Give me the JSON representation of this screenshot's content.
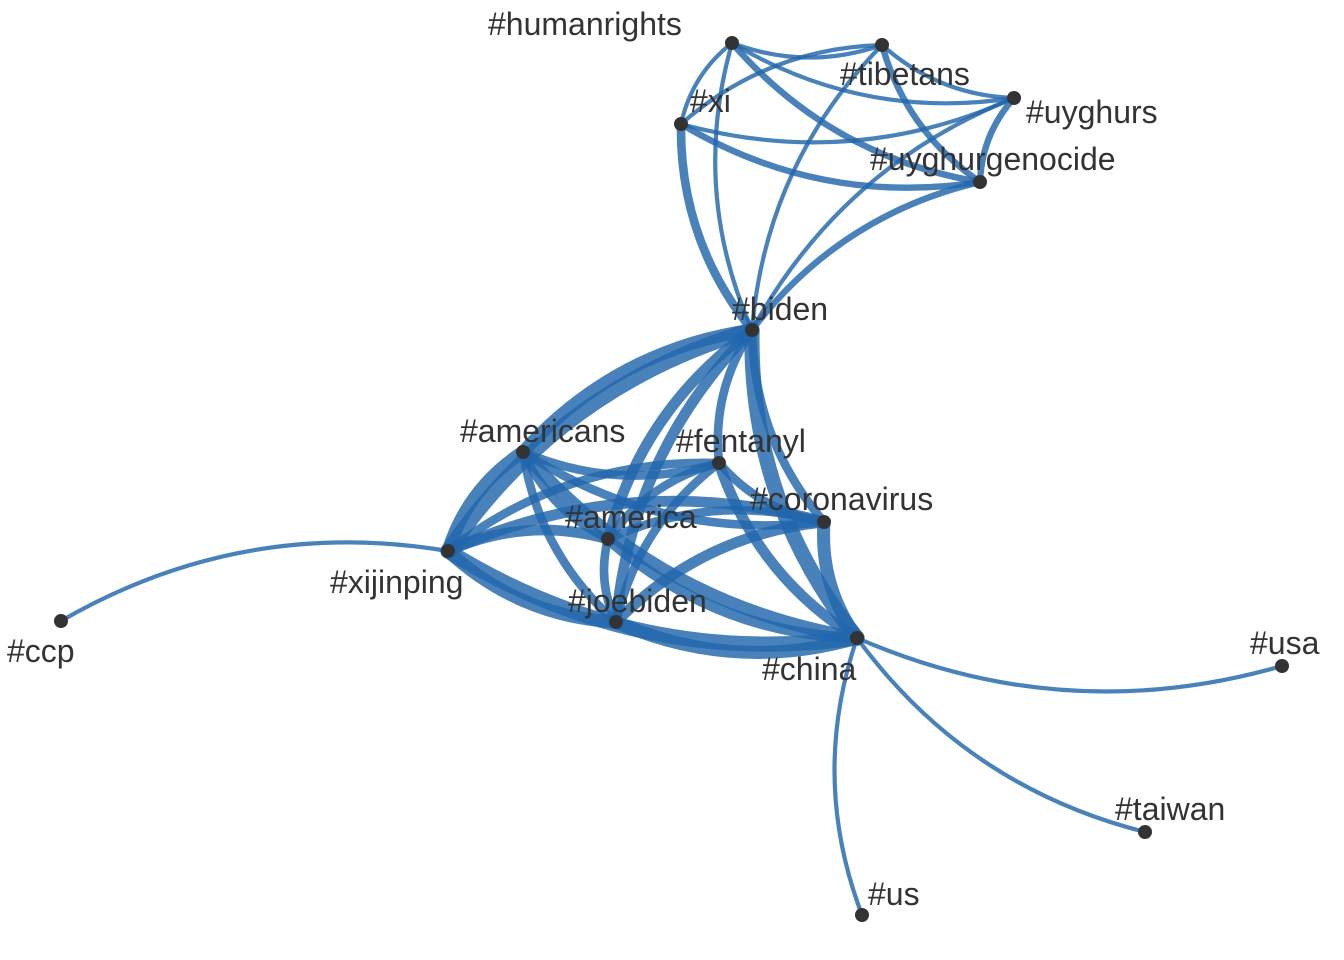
{
  "colors": {
    "edge": "#2166ac",
    "node": "#333333",
    "label": "#333333",
    "background": "#ffffff"
  },
  "nodes": [
    {
      "id": "humanrights",
      "label": "#humanrights"
    },
    {
      "id": "tibetans",
      "label": "#tibetans"
    },
    {
      "id": "xi",
      "label": "#xi"
    },
    {
      "id": "uyghurs",
      "label": "#uyghurs"
    },
    {
      "id": "uyghurgenocide",
      "label": "#uyghurgenocide"
    },
    {
      "id": "biden",
      "label": "#biden"
    },
    {
      "id": "americans",
      "label": "#americans"
    },
    {
      "id": "fentanyl",
      "label": "#fentanyl"
    },
    {
      "id": "coronavirus",
      "label": "#coronavirus"
    },
    {
      "id": "america",
      "label": "#america"
    },
    {
      "id": "xijinping",
      "label": "#xijinping"
    },
    {
      "id": "joebiden",
      "label": "#joebiden"
    },
    {
      "id": "china",
      "label": "#china"
    },
    {
      "id": "ccp",
      "label": "#ccp"
    },
    {
      "id": "usa",
      "label": "#usa"
    },
    {
      "id": "taiwan",
      "label": "#taiwan"
    },
    {
      "id": "us",
      "label": "#us"
    }
  ],
  "edges": [
    {
      "source": "humanrights",
      "target": "tibetans",
      "weight": 1
    },
    {
      "source": "humanrights",
      "target": "uyghurs",
      "weight": 1
    },
    {
      "source": "humanrights",
      "target": "xi",
      "weight": 1
    },
    {
      "source": "humanrights",
      "target": "uyghurgenocide",
      "weight": 2
    },
    {
      "source": "humanrights",
      "target": "biden",
      "weight": 1
    },
    {
      "source": "tibetans",
      "target": "uyghurs",
      "weight": 1
    },
    {
      "source": "tibetans",
      "target": "uyghurgenocide",
      "weight": 2
    },
    {
      "source": "tibetans",
      "target": "xi",
      "weight": 1
    },
    {
      "source": "tibetans",
      "target": "biden",
      "weight": 1
    },
    {
      "source": "xi",
      "target": "uyghurs",
      "weight": 1
    },
    {
      "source": "xi",
      "target": "uyghurgenocide",
      "weight": 2
    },
    {
      "source": "xi",
      "target": "biden",
      "weight": 3
    },
    {
      "source": "uyghurs",
      "target": "uyghurgenocide",
      "weight": 2
    },
    {
      "source": "uyghurs",
      "target": "biden",
      "weight": 1
    },
    {
      "source": "uyghurgenocide",
      "target": "biden",
      "weight": 2
    },
    {
      "source": "biden",
      "target": "americans",
      "weight": 5
    },
    {
      "source": "biden",
      "target": "fentanyl",
      "weight": 3
    },
    {
      "source": "biden",
      "target": "coronavirus",
      "weight": 3
    },
    {
      "source": "biden",
      "target": "america",
      "weight": 4
    },
    {
      "source": "biden",
      "target": "xijinping",
      "weight": 6
    },
    {
      "source": "biden",
      "target": "joebiden",
      "weight": 4
    },
    {
      "source": "biden",
      "target": "china",
      "weight": 6
    },
    {
      "source": "americans",
      "target": "fentanyl",
      "weight": 3
    },
    {
      "source": "americans",
      "target": "coronavirus",
      "weight": 3
    },
    {
      "source": "americans",
      "target": "america",
      "weight": 3
    },
    {
      "source": "americans",
      "target": "xijinping",
      "weight": 5
    },
    {
      "source": "americans",
      "target": "joebiden",
      "weight": 3
    },
    {
      "source": "americans",
      "target": "china",
      "weight": 5
    },
    {
      "source": "fentanyl",
      "target": "coronavirus",
      "weight": 3
    },
    {
      "source": "fentanyl",
      "target": "america",
      "weight": 3
    },
    {
      "source": "fentanyl",
      "target": "xijinping",
      "weight": 3
    },
    {
      "source": "fentanyl",
      "target": "joebiden",
      "weight": 3
    },
    {
      "source": "fentanyl",
      "target": "china",
      "weight": 4
    },
    {
      "source": "coronavirus",
      "target": "america",
      "weight": 3
    },
    {
      "source": "coronavirus",
      "target": "xijinping",
      "weight": 4
    },
    {
      "source": "coronavirus",
      "target": "joebiden",
      "weight": 4
    },
    {
      "source": "coronavirus",
      "target": "china",
      "weight": 5
    },
    {
      "source": "america",
      "target": "xijinping",
      "weight": 4
    },
    {
      "source": "america",
      "target": "joebiden",
      "weight": 3
    },
    {
      "source": "america",
      "target": "china",
      "weight": 4
    },
    {
      "source": "xijinping",
      "target": "joebiden",
      "weight": 5
    },
    {
      "source": "xijinping",
      "target": "china",
      "weight": 6
    },
    {
      "source": "joebiden",
      "target": "china",
      "weight": 5
    },
    {
      "source": "xijinping",
      "target": "ccp",
      "weight": 1
    },
    {
      "source": "china",
      "target": "usa",
      "weight": 1
    },
    {
      "source": "china",
      "target": "taiwan",
      "weight": 1
    },
    {
      "source": "china",
      "target": "us",
      "weight": 1
    }
  ]
}
